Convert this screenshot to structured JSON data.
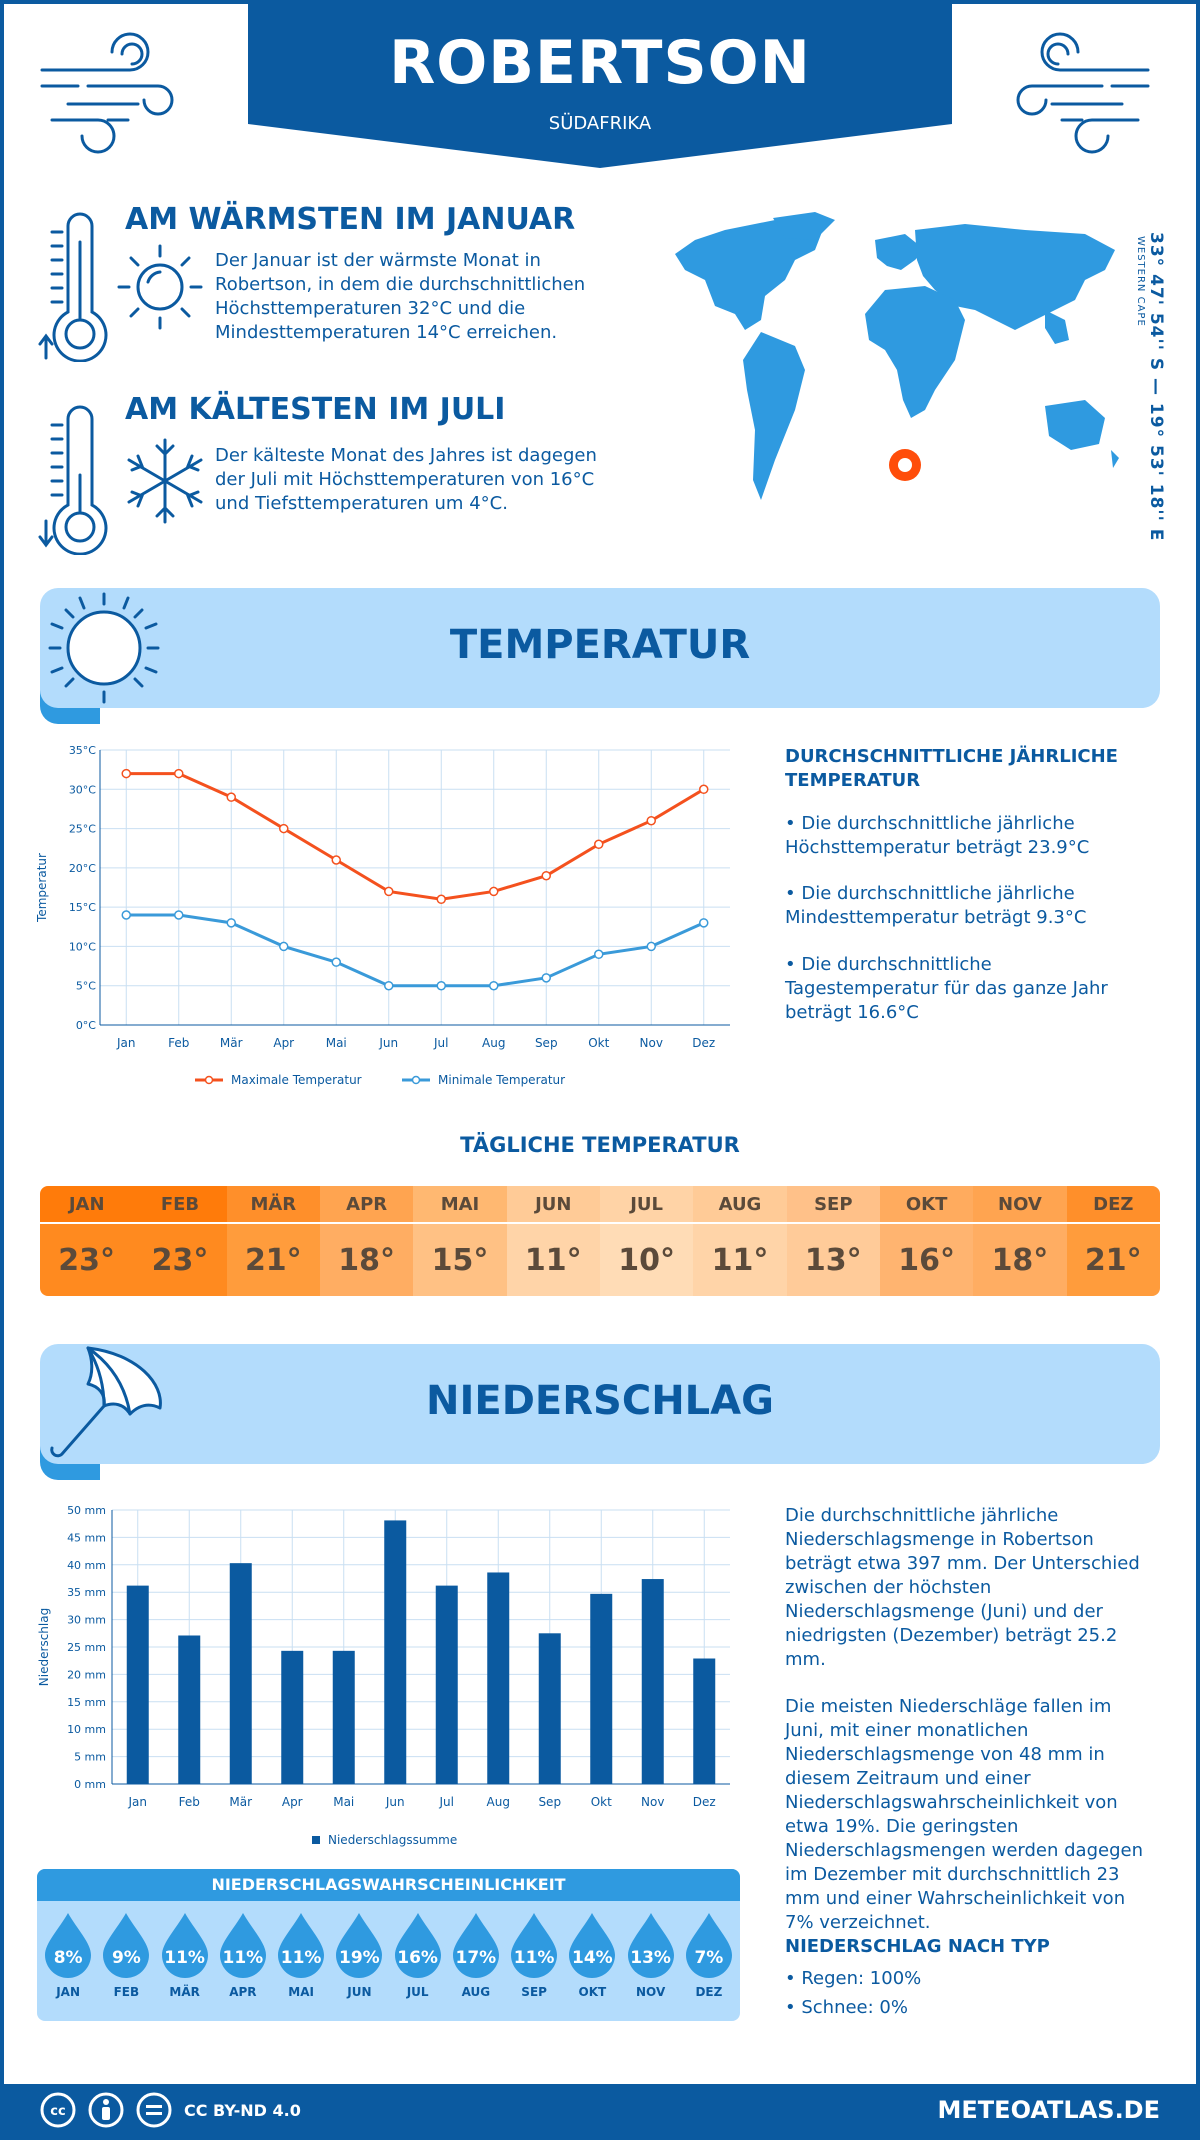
{
  "header": {
    "city": "ROBERTSON",
    "country": "SÜDAFRIKA"
  },
  "warmest": {
    "title": "AM WÄRMSTEN IM JANUAR",
    "text": "Der Januar ist der wärmste Monat in Robertson, in dem die durchschnittlichen Höchsttemperaturen 32°C und die Mindesttemperaturen 14°C erreichen."
  },
  "coldest": {
    "title": "AM KÄLTESTEN IM JULI",
    "text": "Der kälteste Monat des Jahres ist dagegen der Juli mit Höchsttemperaturen von 16°C und Tiefsttemperaturen um 4°C."
  },
  "location": {
    "coords": "33° 47' 54'' S — 19° 53' 18'' E",
    "region": "WESTERN CAPE"
  },
  "temperature_section": {
    "title": "TEMPERATUR",
    "side_title": "DURCHSCHNITTLICHE JÄHRLICHE TEMPERATUR",
    "bullets": [
      "• Die durchschnittliche jährliche Höchsttemperatur beträgt 23.9°C",
      "• Die durchschnittliche jährliche Mindesttemperatur beträgt 9.3°C",
      "• Die durchschnittliche Tagestemperatur für das ganze Jahr beträgt 16.6°C"
    ]
  },
  "daily": {
    "title": "TÄGLICHE TEMPERATUR",
    "months": [
      "JAN",
      "FEB",
      "MÄR",
      "APR",
      "MAI",
      "JUN",
      "JUL",
      "AUG",
      "SEP",
      "OKT",
      "NOV",
      "DEZ"
    ],
    "values": [
      "23°",
      "23°",
      "21°",
      "18°",
      "15°",
      "11°",
      "10°",
      "11°",
      "13°",
      "16°",
      "18°",
      "21°"
    ],
    "colors_head": [
      "#ff7b0a",
      "#ff7b0a",
      "#ff8f2a",
      "#ffa450",
      "#ffb871",
      "#ffcb97",
      "#ffd3a6",
      "#ffcb97",
      "#ffc189",
      "#ffab5e",
      "#ffa450",
      "#ff8f2a"
    ],
    "colors_body": [
      "#ff8a1f",
      "#ff8a1f",
      "#ff9c3c",
      "#ffad62",
      "#ffc184",
      "#ffd4a8",
      "#ffdcb6",
      "#ffd4a8",
      "#ffcb99",
      "#ffb470",
      "#ffad62",
      "#ff9c3c"
    ]
  },
  "precip_section": {
    "title": "NIEDERSCHLAG",
    "text1": "Die durchschnittliche jährliche Niederschlagsmenge in Robertson beträgt etwa 397 mm. Der Unterschied zwischen der höchsten Niederschlagsmenge (Juni) und der niedrigsten (Dezember) beträgt 25.2 mm.",
    "text2": "Die meisten Niederschläge fallen im Juni, mit einer monatlichen Niederschlagsmenge von 48 mm in diesem Zeitraum und einer Niederschlagswahrscheinlichkeit von etwa 19%. Die geringsten Niederschlagsmengen werden dagegen im Dezember mit durchschnittlich 23 mm und einer Wahrscheinlichkeit von 7% verzeichnet.",
    "type_title": "NIEDERSCHLAG NACH TYP",
    "types": [
      "• Regen: 100%",
      "• Schnee: 0%"
    ]
  },
  "probability": {
    "title": "NIEDERSCHLAGSWAHRSCHEINLICHKEIT",
    "months": [
      "JAN",
      "FEB",
      "MÄR",
      "APR",
      "MAI",
      "JUN",
      "JUL",
      "AUG",
      "SEP",
      "OKT",
      "NOV",
      "DEZ"
    ],
    "values": [
      "8%",
      "9%",
      "11%",
      "11%",
      "11%",
      "19%",
      "16%",
      "17%",
      "11%",
      "14%",
      "13%",
      "7%"
    ]
  },
  "footer": {
    "license": "CC BY-ND 4.0",
    "site": "METEOATLAS.DE"
  },
  "chart_data": [
    {
      "type": "line",
      "x": [
        "Jan",
        "Feb",
        "Mär",
        "Apr",
        "Mai",
        "Jun",
        "Jul",
        "Aug",
        "Sep",
        "Okt",
        "Nov",
        "Dez"
      ],
      "series": [
        {
          "name": "Maximale Temperatur",
          "values": [
            32,
            32,
            29,
            25,
            21,
            17,
            16,
            17,
            19,
            23,
            26,
            30
          ],
          "color": "#f4511e"
        },
        {
          "name": "Minimale Temperatur",
          "values": [
            14,
            14,
            13,
            10,
            8,
            5,
            5,
            5,
            6,
            9,
            10,
            13
          ],
          "color": "#3a9ad9"
        }
      ],
      "ylabel": "Temperatur",
      "yticks": [
        "0°C",
        "5°C",
        "10°C",
        "15°C",
        "20°C",
        "25°C",
        "30°C",
        "35°C"
      ],
      "ylim": [
        0,
        35
      ],
      "grid": true,
      "legend": "bottom"
    },
    {
      "type": "bar",
      "categories": [
        "Jan",
        "Feb",
        "Mär",
        "Apr",
        "Mai",
        "Jun",
        "Jul",
        "Aug",
        "Sep",
        "Okt",
        "Nov",
        "Dez"
      ],
      "series": [
        {
          "name": "Niederschlagssumme",
          "values": [
            36.2,
            27.1,
            40.3,
            24.3,
            24.3,
            48.1,
            36.2,
            38.6,
            27.5,
            34.7,
            37.4,
            22.9
          ],
          "color": "#0b5aa0"
        }
      ],
      "ylabel": "Niederschlag",
      "yticks": [
        "0 mm",
        "5 mm",
        "10 mm",
        "15 mm",
        "20 mm",
        "25 mm",
        "30 mm",
        "35 mm",
        "40 mm",
        "45 mm",
        "50 mm"
      ],
      "ylim": [
        0,
        50
      ],
      "grid": true,
      "legend": "bottom"
    }
  ]
}
